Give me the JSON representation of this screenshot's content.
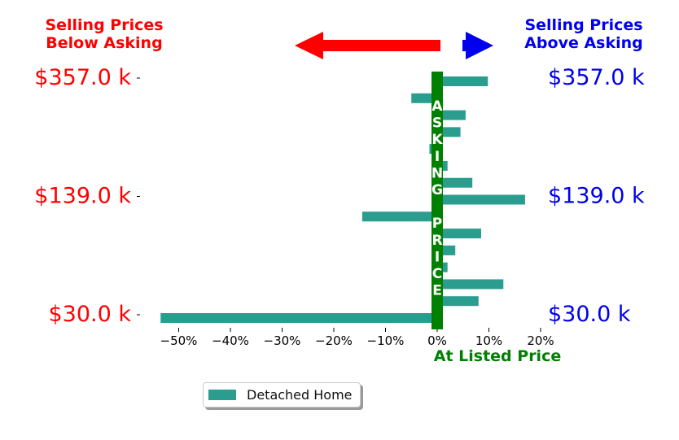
{
  "header": {
    "left_label": "Selling Prices\nBelow Asking",
    "right_label": "Selling Prices\nAbove Asking",
    "left_color": "#ff0000",
    "right_color": "#0000ee"
  },
  "center_line": {
    "text_top": "ASKING",
    "text_bottom": "PRICE",
    "bottom_label": "At Listed Price",
    "color": "#008000"
  },
  "legend": {
    "label": "Detached Home",
    "color": "#2a9d8f"
  },
  "chart_data": {
    "type": "bar",
    "orientation": "horizontal",
    "xlim": [
      -55,
      25
    ],
    "xticks": [
      -50,
      -40,
      -30,
      -20,
      -10,
      0,
      10,
      20
    ],
    "xtick_labels": [
      "−50%",
      "−40%",
      "−30%",
      "−20%",
      "−10%",
      "0%",
      "10%",
      "20%"
    ],
    "y_tick_labels": [
      "$357.0 k",
      "$139.0 k",
      "$30.0 k"
    ],
    "y_label_color_left": "#ff0000",
    "y_label_color_right": "#0000ee",
    "series": [
      {
        "name": "Detached Home",
        "color": "#2a9d8f",
        "values": [
          9.8,
          -5.0,
          5.5,
          4.5,
          -1.5,
          2.0,
          6.8,
          17.0,
          -14.5,
          8.5,
          3.5,
          2.0,
          12.8,
          8.0,
          -53.5
        ]
      }
    ]
  }
}
